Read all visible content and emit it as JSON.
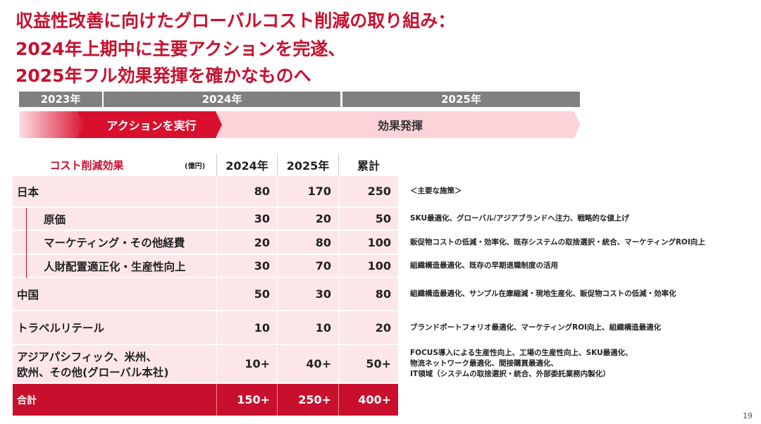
{
  "title": [
    "収益性改善に向けたグローバルコスト削減の取り組み：",
    "2024年上期中に主要アクションを完遂、",
    "2025年フル効果発揮を確かなものへ"
  ],
  "timeline": {
    "years": [
      "2023年",
      "2024年",
      "2025年"
    ],
    "phases": [
      "アクションを実行",
      "効果発揮"
    ]
  },
  "table": {
    "header": [
      "コスト削減効果",
      "(億円)",
      "2024年",
      "2025年",
      "累計"
    ],
    "measures_header": "＜主要な施策＞",
    "rows": [
      {
        "label": [
          "日本"
        ],
        "values": [
          80,
          170,
          250
        ],
        "notes": []
      },
      {
        "label": [
          "原価"
        ],
        "values": [
          30,
          20,
          50
        ],
        "notes": [
          "SKU最適化、グローバル/アジアブランドへ注力、戦略的な値上げ"
        ]
      },
      {
        "label": [
          "マーケティング・その他経費"
        ],
        "values": [
          20,
          80,
          100
        ],
        "notes": [
          "販促物コストの低減・効率化、既存システムの取捨選択・統合、マーケティングROI向上"
        ]
      },
      {
        "label": [
          "人財配置適正化・生産性向上"
        ],
        "values": [
          30,
          70,
          100
        ],
        "notes": [
          "組織構造最適化、既存の早期退職制度の活用"
        ]
      },
      {
        "label": [
          "中国"
        ],
        "values": [
          50,
          30,
          80
        ],
        "notes": [
          "組織構造最適化、サンプル在庫縮減・現地生産化、販促物コストの低減・効率化"
        ]
      },
      {
        "label": [
          "トラベルリテール"
        ],
        "values": [
          10,
          10,
          20
        ],
        "notes": [
          "ブランドポートフォリオ最適化、マーケティングROI向上、組織構造最適化"
        ]
      },
      {
        "label": [
          "アジアパシフィック、米州、",
          "欧州、その他(グローバル本社)"
        ],
        "values": [
          "10+",
          "40+",
          "50+"
        ],
        "notes": [
          "FOCUS導入による生産性向上、工場の生産性向上、SKU最適化、",
          "物流ネットワーク最適化、間接購買最適化、",
          "IT領域（システムの取捨選択・統合、外部委託業務内製化）"
        ]
      },
      {
        "label": [
          "合計"
        ],
        "values": [
          "150+",
          "250+",
          "400+"
        ],
        "notes": []
      }
    ]
  },
  "page_number": "19"
}
